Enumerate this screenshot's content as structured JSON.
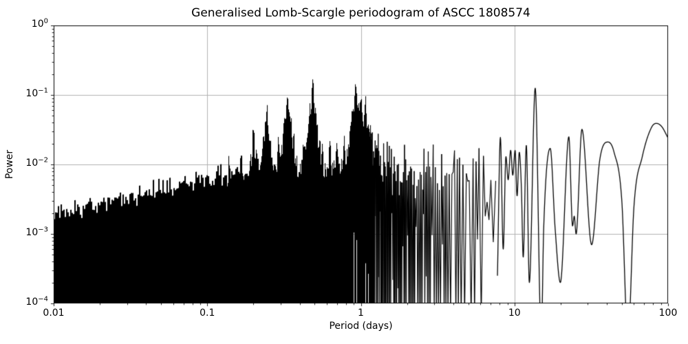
{
  "chart_data": {
    "type": "line",
    "title": "Generalised Lomb-Scargle periodogram of ASCC 1808574",
    "xlabel": "Period (days)",
    "ylabel": "Power",
    "xscale": "log",
    "yscale": "log",
    "xlim": [
      0.01,
      100
    ],
    "ylim": [
      0.0001,
      1
    ],
    "grid": true,
    "legend": false,
    "x_tick_values": [
      0.01,
      0.1,
      1,
      10,
      100
    ],
    "x_tick_labels": [
      "0.01",
      "0.1",
      "1",
      "10",
      "100"
    ],
    "y_tick_values": [
      1,
      0.1,
      0.01,
      0.001,
      0.0001
    ],
    "y_tick_labels": [
      "10^0",
      "10^-1",
      "10^-2",
      "10^-3",
      "10^-4"
    ],
    "colors": {
      "line": "#000000",
      "grid": "#b2b2b2",
      "spine": "#000000",
      "background": "#ffffff",
      "text": "#000000"
    },
    "description": "Dense noise periodogram: solid spiky mass 0.01-1.15 d, resolved spectral lines 1.15-7.75 d, smooth lobed curve 7.75-100 d. Strongest peaks near 0.5 d, 1 d and 13.7 d.",
    "noise_floor_power": 0.0001,
    "noise_envelope_top": [
      [
        0.01,
        0.0021
      ],
      [
        0.014,
        0.0024
      ],
      [
        0.02,
        0.0027
      ],
      [
        0.03,
        0.0032
      ],
      [
        0.045,
        0.0042
      ],
      [
        0.065,
        0.005
      ],
      [
        0.09,
        0.0062
      ],
      [
        0.12,
        0.0068
      ],
      [
        0.17,
        0.0075
      ],
      [
        0.25,
        0.0085
      ],
      [
        0.35,
        0.008
      ],
      [
        0.5,
        0.0085
      ],
      [
        0.65,
        0.008
      ],
      [
        0.8,
        0.0095
      ],
      [
        1.0,
        0.011
      ],
      [
        1.3,
        0.0105
      ],
      [
        1.8,
        0.009
      ],
      [
        2.5,
        0.0085
      ],
      [
        3.5,
        0.008
      ],
      [
        5.0,
        0.0075
      ],
      [
        6.5,
        0.007
      ],
      [
        7.75,
        0.0065
      ]
    ],
    "alias_peaks": [
      [
        0.139,
        0.012
      ],
      [
        0.1665,
        0.016
      ],
      [
        0.2,
        0.031
      ],
      [
        0.244,
        0.062
      ],
      [
        0.2915,
        0.021
      ],
      [
        0.333,
        0.101
      ],
      [
        0.365,
        0.026
      ],
      [
        0.425,
        0.021
      ],
      [
        0.487,
        0.133
      ],
      [
        0.56,
        0.021
      ],
      [
        0.63,
        0.022
      ],
      [
        0.7,
        0.021
      ],
      [
        0.78,
        0.024
      ],
      [
        0.855,
        0.032
      ],
      [
        0.928,
        0.142
      ],
      [
        1.0,
        0.09
      ],
      [
        1.07,
        0.082
      ],
      [
        1.16,
        0.03
      ],
      [
        1.3,
        0.022
      ],
      [
        1.95,
        0.015
      ],
      [
        2.73,
        0.015
      ],
      [
        2.95,
        0.017
      ],
      [
        4.75,
        0.026
      ],
      [
        6.05,
        0.019
      ]
    ],
    "long_period_curve": [
      [
        7.75,
        0.00025
      ],
      [
        8.1,
        0.0245
      ],
      [
        8.45,
        0.0006
      ],
      [
        8.8,
        0.013
      ],
      [
        9.1,
        0.006
      ],
      [
        9.45,
        0.016
      ],
      [
        9.75,
        0.007
      ],
      [
        10.1,
        0.016
      ],
      [
        10.4,
        0.0035
      ],
      [
        10.75,
        0.015
      ],
      [
        11.1,
        0.0045
      ],
      [
        11.4,
        0.00046
      ],
      [
        11.95,
        0.019
      ],
      [
        12.5,
        0.0002
      ],
      [
        13.65,
        0.125
      ],
      [
        14.95,
        3e-05
      ],
      [
        15.5,
        0.0012
      ],
      [
        17.1,
        0.017
      ],
      [
        18.4,
        0.0012
      ],
      [
        19.9,
        0.0002
      ],
      [
        22.6,
        0.025
      ],
      [
        23.9,
        0.0013
      ],
      [
        24.5,
        0.0018
      ],
      [
        25.2,
        0.001
      ],
      [
        27.5,
        0.032
      ],
      [
        31.8,
        0.0007
      ],
      [
        36,
        0.012
      ],
      [
        40.7,
        0.021
      ],
      [
        44.5,
        0.015
      ],
      [
        50,
        0.003
      ],
      [
        54.8,
        3e-05
      ],
      [
        60,
        0.0025
      ],
      [
        68,
        0.013
      ],
      [
        78,
        0.034
      ],
      [
        84,
        0.039
      ],
      [
        91,
        0.035
      ],
      [
        100,
        0.024
      ]
    ],
    "dense_region_period_range": [
      0.01,
      1.15
    ],
    "resolved_lines_period_range": [
      1.15,
      7.75
    ],
    "smooth_region_period_range": [
      7.75,
      100
    ]
  }
}
